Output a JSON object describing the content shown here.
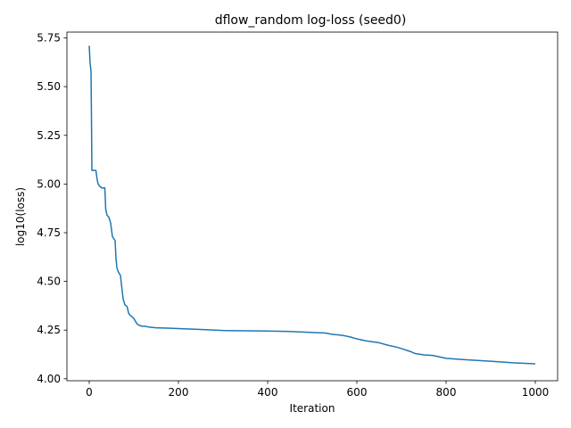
{
  "chart_data": {
    "type": "line",
    "title": "dflow_random log-loss (seed0)",
    "xlabel": "Iteration",
    "ylabel": "log10(loss)",
    "xlim": [
      -50,
      1050
    ],
    "ylim": [
      3.99,
      5.78
    ],
    "xticks": [
      0,
      200,
      400,
      600,
      800,
      1000
    ],
    "xtick_labels": [
      "0",
      "200",
      "400",
      "600",
      "800",
      "1000"
    ],
    "yticks": [
      4.0,
      4.25,
      4.5,
      4.75,
      5.0,
      5.25,
      5.5,
      5.75
    ],
    "ytick_labels": [
      "4.00",
      "4.25",
      "4.50",
      "4.75",
      "5.00",
      "5.25",
      "5.50",
      "5.75"
    ],
    "grid": false,
    "legend": "none",
    "line_color": "#1f77b4",
    "series": [
      {
        "x": [
          0,
          2,
          3,
          4,
          5,
          6,
          7,
          8,
          15,
          18,
          20,
          23,
          28,
          35,
          37,
          40,
          44,
          48,
          52,
          55,
          58,
          60,
          62,
          65,
          70,
          73,
          76,
          80,
          85,
          88,
          90,
          95,
          100,
          105,
          108,
          112,
          118,
          125,
          135,
          150,
          175,
          200,
          250,
          300,
          400,
          450,
          500,
          530,
          545,
          560,
          570,
          585,
          600,
          620,
          650,
          670,
          690,
          700,
          720,
          730,
          750,
          770,
          800,
          850,
          900,
          950,
          1000
        ],
        "y": [
          5.71,
          5.62,
          5.6,
          5.58,
          5.35,
          5.07,
          5.07,
          5.07,
          5.07,
          5.02,
          5.0,
          4.99,
          4.98,
          4.98,
          4.87,
          4.84,
          4.83,
          4.8,
          4.73,
          4.72,
          4.71,
          4.62,
          4.57,
          4.55,
          4.53,
          4.47,
          4.41,
          4.38,
          4.37,
          4.34,
          4.33,
          4.32,
          4.31,
          4.29,
          4.28,
          4.275,
          4.27,
          4.27,
          4.265,
          4.262,
          4.26,
          4.258,
          4.253,
          4.248,
          4.245,
          4.243,
          4.238,
          4.235,
          4.228,
          4.225,
          4.222,
          4.215,
          4.205,
          4.195,
          4.185,
          4.172,
          4.162,
          4.155,
          4.14,
          4.13,
          4.123,
          4.12,
          4.105,
          4.097,
          4.09,
          4.082,
          4.077
        ]
      }
    ]
  }
}
